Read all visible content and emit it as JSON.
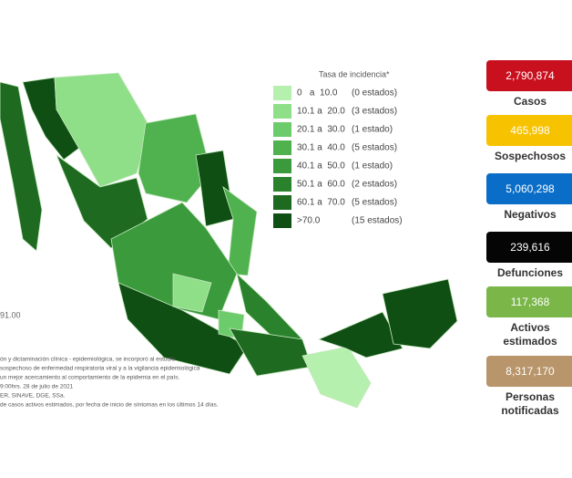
{
  "legend": {
    "title": "Tasa de incidencia*",
    "items": [
      {
        "range": "0   a  10.0",
        "count": "(0 estados)",
        "color": "#b6f0ae"
      },
      {
        "range": "10.1 a  20.0",
        "count": "(3 estados)",
        "color": "#8fdf89"
      },
      {
        "range": "20.1 a  30.0",
        "count": "(1 estado)",
        "color": "#6ccb6a"
      },
      {
        "range": "30.1 a  40.0",
        "count": "(5 estados)",
        "color": "#4fb24f"
      },
      {
        "range": "40.1 a  50.0",
        "count": "(1 estado)",
        "color": "#3a9a3c"
      },
      {
        "range": "50.1 a  60.0",
        "count": "(2 estados)",
        "color": "#2a822c"
      },
      {
        "range": "60.1 a  70.0",
        "count": "(5 estados)",
        "color": "#1d6a20"
      },
      {
        "range": ">70.0",
        "count": "(15 estados)",
        "color": "#0f4f14"
      }
    ]
  },
  "stats": [
    {
      "value": "2,790,874",
      "label": [
        "Casos"
      ],
      "color": "#c8101e"
    },
    {
      "value": "465,998",
      "label": [
        "Sospechosos"
      ],
      "color": "#f7c200"
    },
    {
      "value": "5,060,298",
      "label": [
        "Negativos"
      ],
      "color": "#0a6ec8"
    },
    {
      "value": "239,616",
      "label": [
        "Defunciones"
      ],
      "color": "#050505"
    },
    {
      "value": "117,368",
      "label": [
        "Activos",
        "estimados"
      ],
      "color": "#7ab648"
    },
    {
      "value": "8,317,170",
      "label": [
        "Personas",
        "notificadas"
      ],
      "color": "#b8956a"
    }
  ],
  "side_text": "91.00",
  "footnotes": [
    "ón y dictaminación clínica - epidemiológica, se incorporó al estudio",
    "sospechoso de enfermedad respiratoria viral y a la vigilancia epidemiológica",
    "un mejor acercamiento al comportamiento de la epidemia en el país.",
    "9:00hrs. 28 de julio de 2021",
    "ER, SINAVE, DGE, SSa.",
    "de casos activos estimados, por fecha de inicio de síntomas en los últimos 14 días."
  ]
}
